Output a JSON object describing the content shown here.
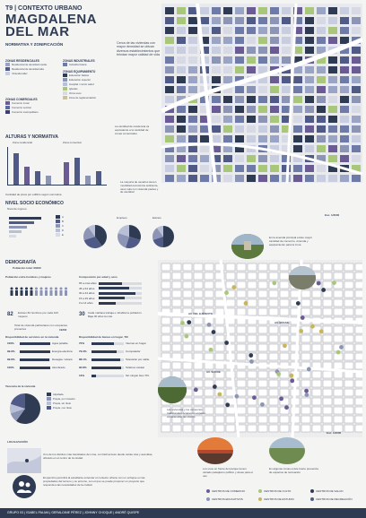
{
  "header": {
    "code": "T9 | CONTEXTO URBANO",
    "title_line1": "MAGDALENA",
    "title_line2": "DEL MAR",
    "subtitle": "NORMATIVA Y ZONIFICACIÓN"
  },
  "intro_text": "Cerca de las viviendas con mayor densidad se ubican diversos establecimientos que brindan mayor calidad de vida",
  "zoning": {
    "residential_h": "ZONAS RESIDENCIALES",
    "residential": [
      "Residencial de densidad media",
      "Residencial de densidad alta",
      "Vivienda taller"
    ],
    "industrial_h": "ZONAS INDUSTRIALES",
    "industrial": [
      "Industria liviana"
    ],
    "equip_h": "ZONAS EQUIPAMIENTO",
    "equip": [
      "Educación básica",
      "Educación superior",
      "Hospital / centro salud",
      "Iglesias",
      "Otros usos",
      "Zona de reglamentación"
    ],
    "commercial_h": "ZONAS COMERCIALES",
    "commercial": [
      "Comercio zonal",
      "Comercio vecinal",
      "Comercio metropolitano"
    ],
    "colors": {
      "res1": "#9aa4c4",
      "res2": "#4f5b86",
      "res3": "#c8cde0",
      "ind": "#6e7ba8",
      "eq1": "#2f3b52",
      "eq2": "#8c95b5",
      "eq3": "#b8bfd6",
      "eq4": "#a9c77a",
      "eq5": "#d7dae4",
      "eq6": "#c9c2a0",
      "com1": "#6b5b95",
      "com2": "#5a6aa0",
      "com3": "#3b3f70"
    }
  },
  "heights": {
    "title": "ALTURAS Y NORMATIVA",
    "left_label": "Zona residencial",
    "right_label": "Zona comercial",
    "caption": "Cantidad de pisos por edificio según normativa",
    "left_values": [
      7,
      4,
      3,
      2
    ],
    "right_values": [
      5,
      6,
      2,
      3
    ]
  },
  "map_notes": {
    "n1": "La cantidad de residencia va equivalente a la cantidad de zonas comerciales",
    "n2": "La mayoría de usuarios tienen movilidad económica suficiente, usos más con vivienda pasiva y de cantidad",
    "scale1": "Esc. 1/3000"
  },
  "socio": {
    "title": "NIVEL SOCIO ECONÓMICO",
    "col1": "Nivel de ingreso",
    "col2": "Empleos",
    "col3": "Estrato",
    "legend": [
      "A",
      "B",
      "C",
      "D",
      "E"
    ]
  },
  "demo": {
    "title": "DEMOGRAFÍA",
    "population": "Población total: 60290",
    "gender_h": "Población entre hombres y mujeres",
    "gender_note": "Existen 82 hombres por cada 100 mujeres",
    "ratio_big": "82",
    "age_h": "Composición por edad y sexo",
    "age_note": "Cada mañana trabaja e inhabita la población. Baja 30 años la más",
    "age_big": "30",
    "ages": [
      "65 a más años",
      "45 a 64 años",
      "30 a 44 años",
      "15 a 29 años",
      "0 a 14 años"
    ],
    "age_values": [
      0.55,
      0.7,
      0.85,
      0.6,
      0.4
    ],
    "dwell_h": "Total de vivienda particulares con ocupantes presentes",
    "dwell_val": "19202",
    "services_h": "Disponibilidad de servicios en la vivienda",
    "services": [
      {
        "pct": "100%",
        "label": "Agua potable",
        "v": 1.0
      },
      {
        "pct": "99.9%",
        "label": "Energía eléctrica",
        "v": 0.99
      },
      {
        "pct": "99.8%",
        "label": "Desagüe / alcant.",
        "v": 0.98
      },
      {
        "pct": "100%",
        "label": "Alumbrado",
        "v": 1.0
      }
    ],
    "goods_h": "Disponibilidad de bienes en hogar, TIC",
    "goods": [
      {
        "pct": "70%",
        "label": "Internet en hogar",
        "v": 0.7
      },
      {
        "pct": "79.3%",
        "label": "Computador",
        "v": 0.79
      },
      {
        "pct": "88.1%",
        "label": "Televisión por cable",
        "v": 0.88
      },
      {
        "pct": "90.8%",
        "label": "Teléfono celular",
        "v": 0.91
      },
      {
        "pct": "13%",
        "label": "Sin ningún bien TIC",
        "v": 0.13
      }
    ],
    "tenure_h": "Tenencia de la vivienda",
    "tenure": [
      "Alquilada",
      "Propia, por invasión",
      "Propia, sin título",
      "Propia, con título"
    ],
    "tenure_values": [
      60,
      10,
      10,
      20
    ]
  },
  "loc": {
    "title": "LOCALIZACIÓN",
    "text1": "Uno de los distritos más transitados de Lima, con fácil acceso desde varias vías y avenidas, ubicado en el centro de la ciudad.",
    "text2": "El ejercicio permitirá al estudiante entender el contexto urbano con un enfoque en las propiedades del terreno y su entorno, con el que se puede proponer un proyecto que responda a las necesidades de la ciudad."
  },
  "photo_notes": {
    "p1": "En la avenida principal existe mayor cantidad de comercio, vivienda y equipamiento para la zona",
    "p2": "Las viviendas y los comercios tradicionales ocupan un espacio considerable del distrito",
    "p3": "Los usos en frente del parque tienen variado paisajismo público y áreas para el uso",
    "p4": "En algunas zonas existe fuerte presencia de espacios de recreación",
    "scale2": "Esc. 1/2000"
  },
  "map_labels": {
    "av1": "AV. BRASIL",
    "av2": "AV. DEL EJÉRCITO",
    "av3": "AV. SUCRE"
  },
  "legend2": [
    "CENTROS DE COMERCIO",
    "CENTROS DE CULTO",
    "CENTROS DE SALUD",
    "CENTROS EDUCATIVOS",
    "CENTROS DE ESTUDIO",
    "CENTROS DE RECREACIÓN"
  ],
  "footer": "GRUPO 03 | ISABEL PALMA | GERALDINE PÉREZ | JOHNNY CHOQUE | ANDRÉ QUISPE"
}
